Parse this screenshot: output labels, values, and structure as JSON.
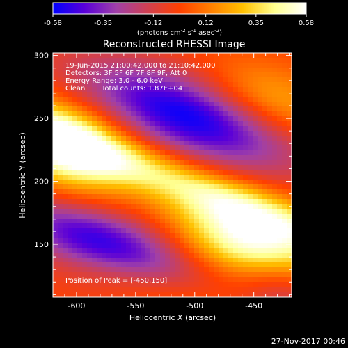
{
  "chart_data": {
    "type": "heatmap",
    "title": "Reconstructed RHESSI Image",
    "xlabel": "Heliocentric X (arcsec)",
    "ylabel": "Heliocentric Y (arcsec)",
    "xlim": [
      -620,
      -418
    ],
    "ylim": [
      108,
      302
    ],
    "x_ticks": [
      -600,
      -550,
      -500,
      -450
    ],
    "x_tick_labels": [
      "-600",
      "-550",
      "-500",
      "-450"
    ],
    "y_ticks": [
      150,
      200,
      250,
      300
    ],
    "y_tick_labels": [
      "150",
      "200",
      "250",
      "300"
    ],
    "colorbar": {
      "range": [
        -0.58,
        0.58
      ],
      "ticks": [
        -0.58,
        -0.35,
        -0.12,
        0.12,
        0.35,
        0.58
      ],
      "tick_labels": [
        "-0.58",
        "-0.35",
        "-0.12",
        "0.12",
        "0.35",
        "0.58"
      ],
      "unit_main": "(photons cm",
      "unit_exp1": "-2",
      "unit_mid": " s",
      "unit_exp2": "-1",
      "unit_tail": " asec",
      "unit_exp3": "-2",
      "unit_close": ")"
    },
    "colormap": [
      "#0000ff",
      "#5a00d8",
      "#a040a8",
      "#d04050",
      "#ff4000",
      "#ff8000",
      "#ffc000",
      "#ffff90",
      "#ffffff"
    ],
    "annotations": {
      "time_range": "19-Jun-2015 21:00:42.000 to 21:10:42.000",
      "detectors": "Detectors: 3F 5F 6F 7F 8F 9F, Att 0",
      "energy": "Energy Range: 3.0 - 6.0 keV",
      "clean": "Clean",
      "counts": "Total counts: 1.87E+04",
      "peak": "Position of Peak = [-450,150]"
    },
    "peak": [
      -450,
      150
    ],
    "footer_date": "27-Nov-2017 00:46"
  }
}
